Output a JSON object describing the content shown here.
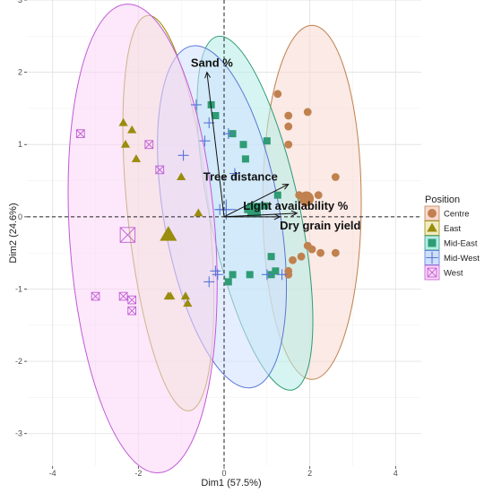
{
  "chart_data": {
    "type": "scatter",
    "xlabel": "Dim1 (57.5%)",
    "ylabel": "Dim2 (24.6%)",
    "xlim": [
      -4.6,
      4.6
    ],
    "ylim": [
      -3.45,
      3.0
    ],
    "x_ticks": [
      -4,
      -2,
      0,
      2,
      4
    ],
    "y_ticks": [
      -3,
      -2,
      -1,
      0,
      1,
      2,
      3
    ],
    "grid": true,
    "legend": {
      "title": "Position",
      "placement": "right"
    },
    "series": [
      {
        "name": "Centre",
        "marker": "circle",
        "color": "#c0814e",
        "fill": "#f8d9cf",
        "points": [
          [
            1.25,
            1.7
          ],
          [
            1.5,
            1.4
          ],
          [
            1.95,
            1.45
          ],
          [
            1.5,
            1.25
          ],
          [
            1.5,
            1.0
          ],
          [
            2.6,
            0.55
          ],
          [
            2.2,
            0.3
          ],
          [
            1.75,
            0.3
          ],
          [
            1.9,
            0.2
          ],
          [
            1.95,
            -0.4
          ],
          [
            2.05,
            -0.45
          ],
          [
            2.25,
            -0.5
          ],
          [
            2.6,
            -0.5
          ],
          [
            1.8,
            -0.55
          ],
          [
            1.6,
            -0.6
          ],
          [
            1.5,
            -0.75
          ],
          [
            1.5,
            -0.8
          ]
        ],
        "centroid": [
          1.92,
          0.25
        ],
        "ellipse": {
          "cx": 2.05,
          "cy": 0.2,
          "rx": 1.15,
          "ry": 2.45,
          "angle": 0
        }
      },
      {
        "name": "East",
        "marker": "triangle",
        "color": "#9a8c0c",
        "fill": "#f0ecc2",
        "points": [
          [
            -2.35,
            1.3
          ],
          [
            -2.15,
            1.2
          ],
          [
            -2.3,
            1.0
          ],
          [
            -2.05,
            0.8
          ],
          [
            -1.0,
            0.55
          ],
          [
            -0.6,
            0.05
          ],
          [
            -1.3,
            -1.1
          ],
          [
            -1.25,
            -1.1
          ],
          [
            -0.9,
            -1.1
          ],
          [
            -0.85,
            -1.2
          ]
        ],
        "centroid": [
          -1.3,
          -0.25
        ],
        "ellipse": {
          "cx": -1.3,
          "cy": 0.05,
          "rx": 0.95,
          "ry": 2.75,
          "angle": -6
        }
      },
      {
        "name": "Mid-East",
        "marker": "square",
        "color": "#2e9c74",
        "fill": "#b5ece7",
        "points": [
          [
            -0.3,
            1.55
          ],
          [
            -0.2,
            1.4
          ],
          [
            0.2,
            1.15
          ],
          [
            0.45,
            1.0
          ],
          [
            0.5,
            0.8
          ],
          [
            1.0,
            1.05
          ],
          [
            0.55,
            0.1
          ],
          [
            0.95,
            0.15
          ],
          [
            1.25,
            0.3
          ],
          [
            1.1,
            -0.55
          ],
          [
            1.2,
            -0.75
          ],
          [
            1.1,
            -0.8
          ],
          [
            0.6,
            -0.8
          ],
          [
            0.2,
            -0.8
          ],
          [
            0.1,
            -0.9
          ]
        ],
        "centroid": [
          0.7,
          0.1
        ],
        "ellipse": {
          "cx": 0.72,
          "cy": 0.05,
          "rx": 1.05,
          "ry": 2.5,
          "angle": -12
        }
      },
      {
        "name": "Mid-West",
        "marker": "plus",
        "color": "#5a76d6",
        "fill": "#cfe0ff",
        "points": [
          [
            -0.65,
            1.55
          ],
          [
            -0.35,
            1.3
          ],
          [
            -0.45,
            1.05
          ],
          [
            0.1,
            1.15
          ],
          [
            -0.95,
            0.85
          ],
          [
            0.25,
            0.6
          ],
          [
            0.05,
            0.1
          ],
          [
            -0.1,
            0.1
          ],
          [
            -0.2,
            -0.75
          ],
          [
            -0.15,
            -0.8
          ],
          [
            -0.35,
            -0.9
          ],
          [
            1.0,
            -0.8
          ],
          [
            1.35,
            -0.8
          ]
        ],
        "centroid": [
          0.05,
          0.1
        ],
        "ellipse": {
          "cx": -0.05,
          "cy": 0.0,
          "rx": 1.35,
          "ry": 2.4,
          "angle": -10
        }
      },
      {
        "name": "West",
        "marker": "box-cross",
        "color": "#c05ad6",
        "fill": "#fad6f5",
        "points": [
          [
            -3.35,
            1.15
          ],
          [
            -1.75,
            1.0
          ],
          [
            -1.5,
            0.65
          ],
          [
            -3.0,
            -1.1
          ],
          [
            -2.35,
            -1.1
          ],
          [
            -2.15,
            -1.15
          ],
          [
            -2.15,
            -1.3
          ]
        ],
        "centroid": [
          -2.25,
          -0.25
        ],
        "ellipse": {
          "cx": -1.9,
          "cy": -0.3,
          "rx": 1.7,
          "ry": 3.25,
          "angle": -4
        }
      }
    ],
    "variables": [
      {
        "name": "Sand %",
        "x": -0.4,
        "y": 2.0
      },
      {
        "name": "Tree distance",
        "x": 1.5,
        "y": 0.45
      },
      {
        "name": "Light availability %",
        "x": 1.7,
        "y": 0.05
      },
      {
        "name": "Dry grain yield",
        "x": 1.3,
        "y": 0.0
      }
    ]
  }
}
